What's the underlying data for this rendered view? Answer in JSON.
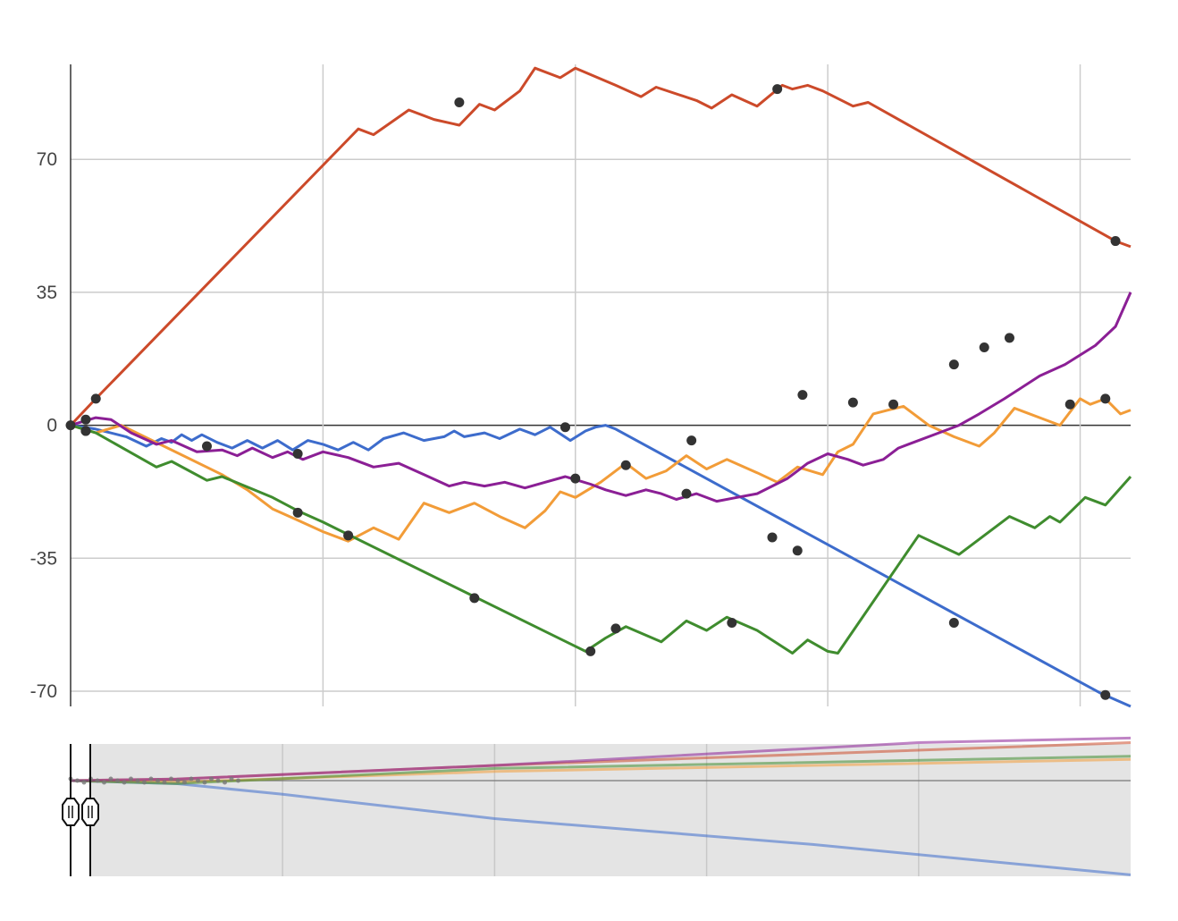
{
  "chart_data": {
    "type": "line",
    "title": "",
    "xlabel": "",
    "ylabel": "",
    "xlim": [
      0,
      21
    ],
    "ylim": [
      -74,
      95
    ],
    "yticks": [
      -70,
      -35,
      0,
      35,
      70
    ],
    "ytick_labels": [
      "-70",
      "-35",
      "0",
      "35",
      "70"
    ],
    "x_gridlines": [
      5,
      10,
      15,
      20
    ],
    "grid": true,
    "legend": "none",
    "series": [
      {
        "color": "#cc4a2a",
        "points": [
          [
            0,
            0
          ],
          [
            0.5,
            7
          ],
          [
            5.7,
            78
          ],
          [
            6,
            76.5
          ],
          [
            6.7,
            83
          ],
          [
            7.2,
            80.5
          ],
          [
            7.7,
            79
          ],
          [
            8.1,
            84.5
          ],
          [
            8.4,
            83
          ],
          [
            8.9,
            88
          ],
          [
            9.2,
            94
          ],
          [
            9.7,
            91.5
          ],
          [
            10,
            94
          ],
          [
            10.8,
            89.5
          ],
          [
            11.3,
            86.5
          ],
          [
            11.6,
            89
          ],
          [
            12.4,
            85.5
          ],
          [
            12.7,
            83.5
          ],
          [
            13.1,
            87
          ],
          [
            13.6,
            84
          ],
          [
            14.1,
            89.5
          ],
          [
            14.3,
            88.5
          ],
          [
            14.6,
            89.5
          ],
          [
            14.9,
            88
          ],
          [
            15.5,
            84
          ],
          [
            15.8,
            85
          ],
          [
            20.7,
            48.5
          ],
          [
            21,
            47
          ]
        ],
        "markers": [
          [
            0,
            0
          ],
          [
            0.5,
            7
          ],
          [
            7.7,
            85
          ],
          [
            14,
            88.5
          ],
          [
            20.7,
            48.5
          ]
        ]
      },
      {
        "color": "#3d6ccc",
        "points": [
          [
            0,
            0
          ],
          [
            0.5,
            -1
          ],
          [
            1.1,
            -3
          ],
          [
            1.5,
            -5.5
          ],
          [
            1.8,
            -3.5
          ],
          [
            2,
            -4.5
          ],
          [
            2.2,
            -2.5
          ],
          [
            2.4,
            -4
          ],
          [
            2.6,
            -2.5
          ],
          [
            2.9,
            -4.5
          ],
          [
            3.2,
            -6
          ],
          [
            3.5,
            -4
          ],
          [
            3.8,
            -6
          ],
          [
            4.1,
            -4
          ],
          [
            4.4,
            -6.5
          ],
          [
            4.7,
            -4
          ],
          [
            5,
            -5
          ],
          [
            5.3,
            -6.5
          ],
          [
            5.6,
            -4.5
          ],
          [
            5.9,
            -6.5
          ],
          [
            6.2,
            -3.5
          ],
          [
            6.6,
            -2
          ],
          [
            7,
            -4
          ],
          [
            7.4,
            -3
          ],
          [
            7.6,
            -1.5
          ],
          [
            7.8,
            -3
          ],
          [
            8.2,
            -2
          ],
          [
            8.5,
            -3.5
          ],
          [
            8.9,
            -1
          ],
          [
            9.2,
            -2.5
          ],
          [
            9.5,
            -0.5
          ],
          [
            9.9,
            -4
          ],
          [
            10.2,
            -1.5
          ],
          [
            10.4,
            -0.5
          ],
          [
            10.6,
            0
          ],
          [
            10.8,
            -1
          ],
          [
            20.4,
            -70.5
          ],
          [
            21,
            -74
          ]
        ],
        "markers": [
          [
            0.3,
            -1.5
          ],
          [
            2.7,
            -5.5
          ],
          [
            4.5,
            -7.5
          ],
          [
            9.8,
            -0.5
          ],
          [
            11,
            -10.5
          ],
          [
            12.2,
            -18
          ],
          [
            13.9,
            -29.5
          ],
          [
            14.4,
            -33
          ],
          [
            17.5,
            -52
          ],
          [
            20.5,
            -71
          ]
        ]
      },
      {
        "color": "#f29c38",
        "points": [
          [
            0,
            0
          ],
          [
            0.5,
            -2
          ],
          [
            1,
            0
          ],
          [
            3,
            -13
          ],
          [
            3.5,
            -17
          ],
          [
            4,
            -22
          ],
          [
            4.5,
            -25
          ],
          [
            5,
            -28
          ],
          [
            5.5,
            -30.5
          ],
          [
            6,
            -27
          ],
          [
            6.5,
            -30
          ],
          [
            7,
            -20.5
          ],
          [
            7.5,
            -23
          ],
          [
            8,
            -20.5
          ],
          [
            8.5,
            -24
          ],
          [
            9,
            -27
          ],
          [
            9.4,
            -22.5
          ],
          [
            9.7,
            -17.5
          ],
          [
            10,
            -19
          ],
          [
            10.5,
            -15
          ],
          [
            11,
            -10
          ],
          [
            11.4,
            -14
          ],
          [
            11.8,
            -12
          ],
          [
            12.2,
            -8
          ],
          [
            12.6,
            -11.5
          ],
          [
            13,
            -9
          ],
          [
            13.6,
            -12.5
          ],
          [
            14,
            -15
          ],
          [
            14.4,
            -11
          ],
          [
            14.9,
            -13
          ],
          [
            15.2,
            -7
          ],
          [
            15.5,
            -5
          ],
          [
            15.9,
            3
          ],
          [
            16.2,
            4
          ],
          [
            16.5,
            5
          ],
          [
            17,
            0
          ],
          [
            17.5,
            -3
          ],
          [
            18,
            -5.5
          ],
          [
            18.3,
            -2
          ],
          [
            18.7,
            4.5
          ],
          [
            19.2,
            2
          ],
          [
            19.6,
            0
          ],
          [
            20,
            7
          ],
          [
            20.2,
            5.5
          ],
          [
            20.5,
            7
          ],
          [
            20.8,
            3
          ],
          [
            21,
            4
          ]
        ],
        "markers": [
          [
            10,
            -14
          ],
          [
            19.8,
            5.5
          ],
          [
            20.5,
            7
          ]
        ]
      },
      {
        "color": "#3f8c2e",
        "points": [
          [
            0,
            0
          ],
          [
            0.5,
            -2
          ],
          [
            1.7,
            -11
          ],
          [
            2,
            -9.5
          ],
          [
            2.7,
            -14.5
          ],
          [
            3,
            -13.5
          ],
          [
            4,
            -19
          ],
          [
            4.5,
            -22.5
          ],
          [
            5,
            -25.5
          ],
          [
            10.2,
            -59.5
          ],
          [
            10.6,
            -56
          ],
          [
            11,
            -53
          ],
          [
            11.7,
            -57
          ],
          [
            12.2,
            -51.5
          ],
          [
            12.6,
            -54
          ],
          [
            13,
            -50.5
          ],
          [
            13.6,
            -54
          ],
          [
            14.3,
            -60
          ],
          [
            14.6,
            -56.5
          ],
          [
            15,
            -59.5
          ],
          [
            15.2,
            -60
          ],
          [
            16.8,
            -29
          ],
          [
            17.6,
            -34
          ],
          [
            18.6,
            -24
          ],
          [
            19.1,
            -27
          ],
          [
            19.4,
            -24
          ],
          [
            19.6,
            -25.5
          ],
          [
            20.1,
            -19
          ],
          [
            20.5,
            -21
          ],
          [
            21,
            -13.5
          ]
        ],
        "markers": [
          [
            0.3,
            -1.5
          ],
          [
            4.5,
            -23
          ],
          [
            5.5,
            -29
          ],
          [
            8,
            -45.5
          ],
          [
            10.3,
            -59.5
          ],
          [
            10.8,
            -53.5
          ],
          [
            13.1,
            -52
          ]
        ]
      },
      {
        "color": "#8b1f95",
        "points": [
          [
            0,
            0
          ],
          [
            0.5,
            2
          ],
          [
            0.8,
            1.5
          ],
          [
            1.2,
            -2
          ],
          [
            1.7,
            -5
          ],
          [
            2,
            -4
          ],
          [
            2.5,
            -7
          ],
          [
            3,
            -6.5
          ],
          [
            3.3,
            -8
          ],
          [
            3.6,
            -6
          ],
          [
            4,
            -8.5
          ],
          [
            4.3,
            -7
          ],
          [
            4.6,
            -9
          ],
          [
            5,
            -7
          ],
          [
            5.5,
            -8.5
          ],
          [
            6,
            -11
          ],
          [
            6.5,
            -10
          ],
          [
            7,
            -13
          ],
          [
            7.5,
            -16
          ],
          [
            7.8,
            -15
          ],
          [
            8.2,
            -16
          ],
          [
            8.6,
            -15
          ],
          [
            9,
            -16.5
          ],
          [
            9.4,
            -15
          ],
          [
            9.8,
            -13.5
          ],
          [
            10.3,
            -15.5
          ],
          [
            10.6,
            -17
          ],
          [
            11,
            -18.5
          ],
          [
            11.4,
            -17
          ],
          [
            11.7,
            -18
          ],
          [
            12,
            -19.5
          ],
          [
            12.4,
            -18
          ],
          [
            12.8,
            -20
          ],
          [
            13.2,
            -19
          ],
          [
            13.6,
            -18
          ],
          [
            14.2,
            -14
          ],
          [
            14.6,
            -10
          ],
          [
            15,
            -7.5
          ],
          [
            15.4,
            -9
          ],
          [
            15.7,
            -10.5
          ],
          [
            16.1,
            -9
          ],
          [
            16.4,
            -6
          ],
          [
            16.7,
            -4.5
          ],
          [
            17.2,
            -2
          ],
          [
            17.6,
            0
          ],
          [
            18,
            3
          ],
          [
            18.5,
            7
          ],
          [
            19.2,
            13
          ],
          [
            19.7,
            16
          ],
          [
            20.3,
            21
          ],
          [
            20.7,
            26
          ],
          [
            21,
            35
          ]
        ],
        "markers": [
          [
            0.3,
            1.5
          ],
          [
            12.3,
            -4
          ],
          [
            14.5,
            8
          ],
          [
            15.5,
            6
          ],
          [
            16.3,
            5.5
          ],
          [
            17.5,
            16
          ],
          [
            18.1,
            20.5
          ],
          [
            18.6,
            23
          ]
        ]
      }
    ],
    "navigator": {
      "background": "#e4e4e4",
      "handle_positions": [
        0,
        0.015
      ]
    }
  }
}
